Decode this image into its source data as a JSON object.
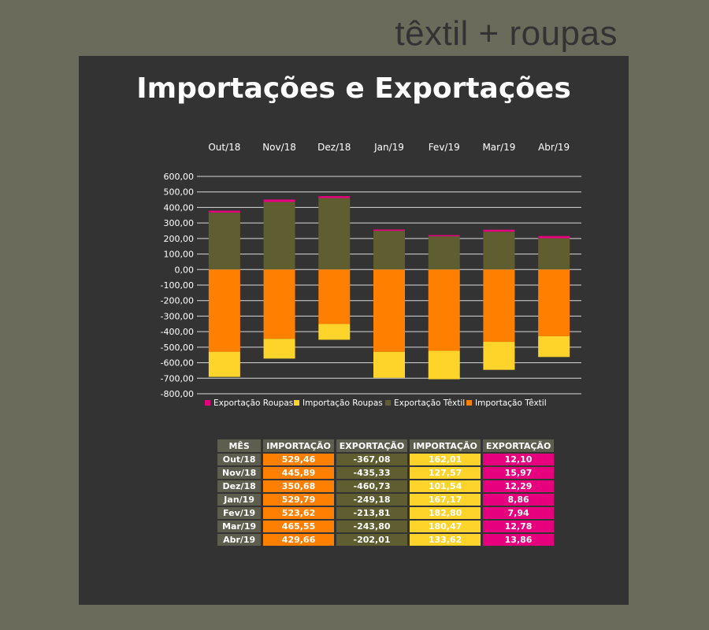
{
  "brand": "têxtil + roupas",
  "colors": {
    "background": "#6b6b5b",
    "panel": "#333333",
    "exportacao_roupas": "#e6007e",
    "importacao_roupas": "#ffd42a",
    "exportacao_textil": "#5e5e30",
    "importacao_textil": "#ff8000"
  },
  "chart_data": {
    "type": "bar",
    "stacked": true,
    "title": "Importações e Exportações",
    "categories": [
      "Out/18",
      "Nov/18",
      "Dez/18",
      "Jan/19",
      "Fev/19",
      "Mar/19",
      "Abr/19"
    ],
    "ylim": [
      -800,
      600
    ],
    "yticks": [
      "600,00",
      "500,00",
      "400,00",
      "300,00",
      "200,00",
      "100,00",
      "0,00",
      "-100,00",
      "-200,00",
      "-300,00",
      "-400,00",
      "-500,00",
      "-600,00",
      "-700,00",
      "-800,00"
    ],
    "grid": true,
    "legend_position": "bottom",
    "series": [
      {
        "name": "Exportação Roupas",
        "values": [
          12.1,
          15.97,
          12.29,
          8.86,
          7.94,
          12.78,
          13.86
        ]
      },
      {
        "name": "Importação Roupas",
        "values": [
          -162.01,
          -127.57,
          -101.54,
          -167.17,
          -182.8,
          -180.47,
          -133.62
        ]
      },
      {
        "name": "Exportação Têxtil",
        "values": [
          367.08,
          435.33,
          460.73,
          249.18,
          213.81,
          243.8,
          202.01
        ]
      },
      {
        "name": "Importação Têxtil",
        "values": [
          -529.46,
          -445.89,
          -350.68,
          -529.79,
          -523.62,
          -465.55,
          -429.66
        ]
      }
    ]
  },
  "table": {
    "headers": [
      "MÊS",
      "IMPORTAÇÃO",
      "EXPORTAÇÃO",
      "IMPORTAÇÃO",
      "EXPORTAÇÃO"
    ],
    "rows": [
      [
        "Out/18",
        "529,46",
        "-367,08",
        "162,01",
        "12,10"
      ],
      [
        "Nov/18",
        "445,89",
        "-435,33",
        "127,57",
        "15,97"
      ],
      [
        "Dez/18",
        "350,68",
        "-460,73",
        "101,54",
        "12,29"
      ],
      [
        "Jan/19",
        "529,79",
        "-249,18",
        "167,17",
        "8,86"
      ],
      [
        "Fev/19",
        "523,62",
        "-213,81",
        "182,80",
        "7,94"
      ],
      [
        "Mar/19",
        "465,55",
        "-243,80",
        "180,47",
        "12,78"
      ],
      [
        "Abr/19",
        "429,66",
        "-202,01",
        "133,62",
        "13,86"
      ]
    ]
  }
}
